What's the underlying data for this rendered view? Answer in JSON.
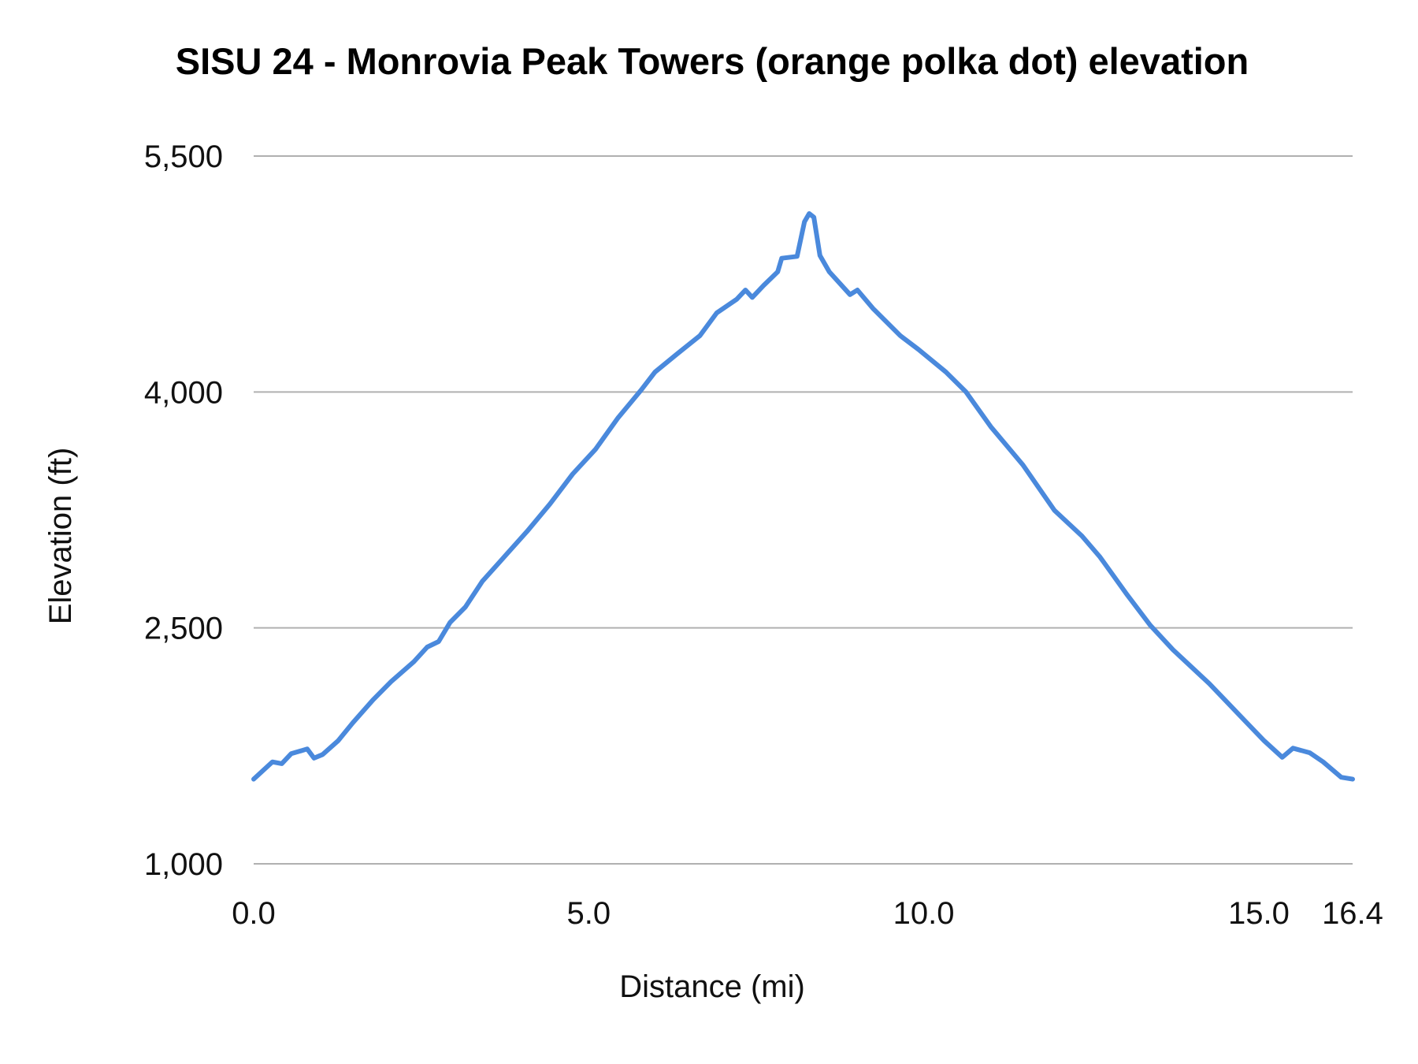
{
  "chart_data": {
    "type": "line",
    "title": "SISU 24 - Monrovia Peak Towers (orange polka dot) elevation",
    "xlabel": "Distance (mi)",
    "ylabel": "Elevation (ft)",
    "xlim": [
      0,
      16.4
    ],
    "ylim": [
      1000,
      5500
    ],
    "x_ticks": [
      "0.0",
      "5.0",
      "10.0",
      "15.0",
      "16.4"
    ],
    "x_tick_values": [
      0,
      5,
      10,
      15,
      16.4
    ],
    "y_ticks": [
      "1,000",
      "2,500",
      "4,000",
      "5,500"
    ],
    "y_tick_values": [
      1000,
      2500,
      4000,
      5500
    ],
    "grid": "horizontal",
    "legend": "none",
    "line_color": "#4a89dc",
    "grid_color": "#b0b0b0",
    "series": [
      {
        "x": [
          0,
          0.28,
          0.42,
          0.56,
          0.8,
          0.9,
          1.03,
          1.26,
          1.48,
          1.78,
          2.05,
          2.39,
          2.59,
          2.76,
          2.93,
          3.16,
          3.41,
          3.75,
          4.08,
          4.42,
          4.76,
          5.1,
          5.44,
          5.78,
          5.99,
          6.32,
          6.66,
          6.91,
          7.21,
          7.34,
          7.44,
          7.61,
          7.82,
          7.88,
          8.11,
          8.22,
          8.29,
          8.36,
          8.45,
          8.59,
          8.9,
          9.01,
          9.24,
          9.65,
          9.92,
          10.33,
          10.63,
          11.0,
          11.48,
          11.95,
          12.36,
          12.63,
          13.04,
          13.38,
          13.72,
          14.26,
          14.78,
          15.08,
          15.35,
          15.51,
          15.76,
          15.96,
          16.23,
          16.4
        ],
        "y": [
          1538,
          1648,
          1637,
          1700,
          1730,
          1672,
          1695,
          1782,
          1897,
          2042,
          2158,
          2285,
          2378,
          2413,
          2534,
          2633,
          2795,
          2957,
          3113,
          3287,
          3478,
          3635,
          3837,
          4011,
          4127,
          4242,
          4358,
          4503,
          4590,
          4648,
          4601,
          4677,
          4764,
          4850,
          4862,
          5082,
          5134,
          5111,
          4868,
          4764,
          4619,
          4648,
          4532,
          4358,
          4271,
          4127,
          4000,
          3779,
          3536,
          3247,
          3084,
          2951,
          2708,
          2517,
          2361,
          2146,
          1915,
          1782,
          1677,
          1735,
          1706,
          1648,
          1550,
          1538
        ]
      }
    ]
  }
}
